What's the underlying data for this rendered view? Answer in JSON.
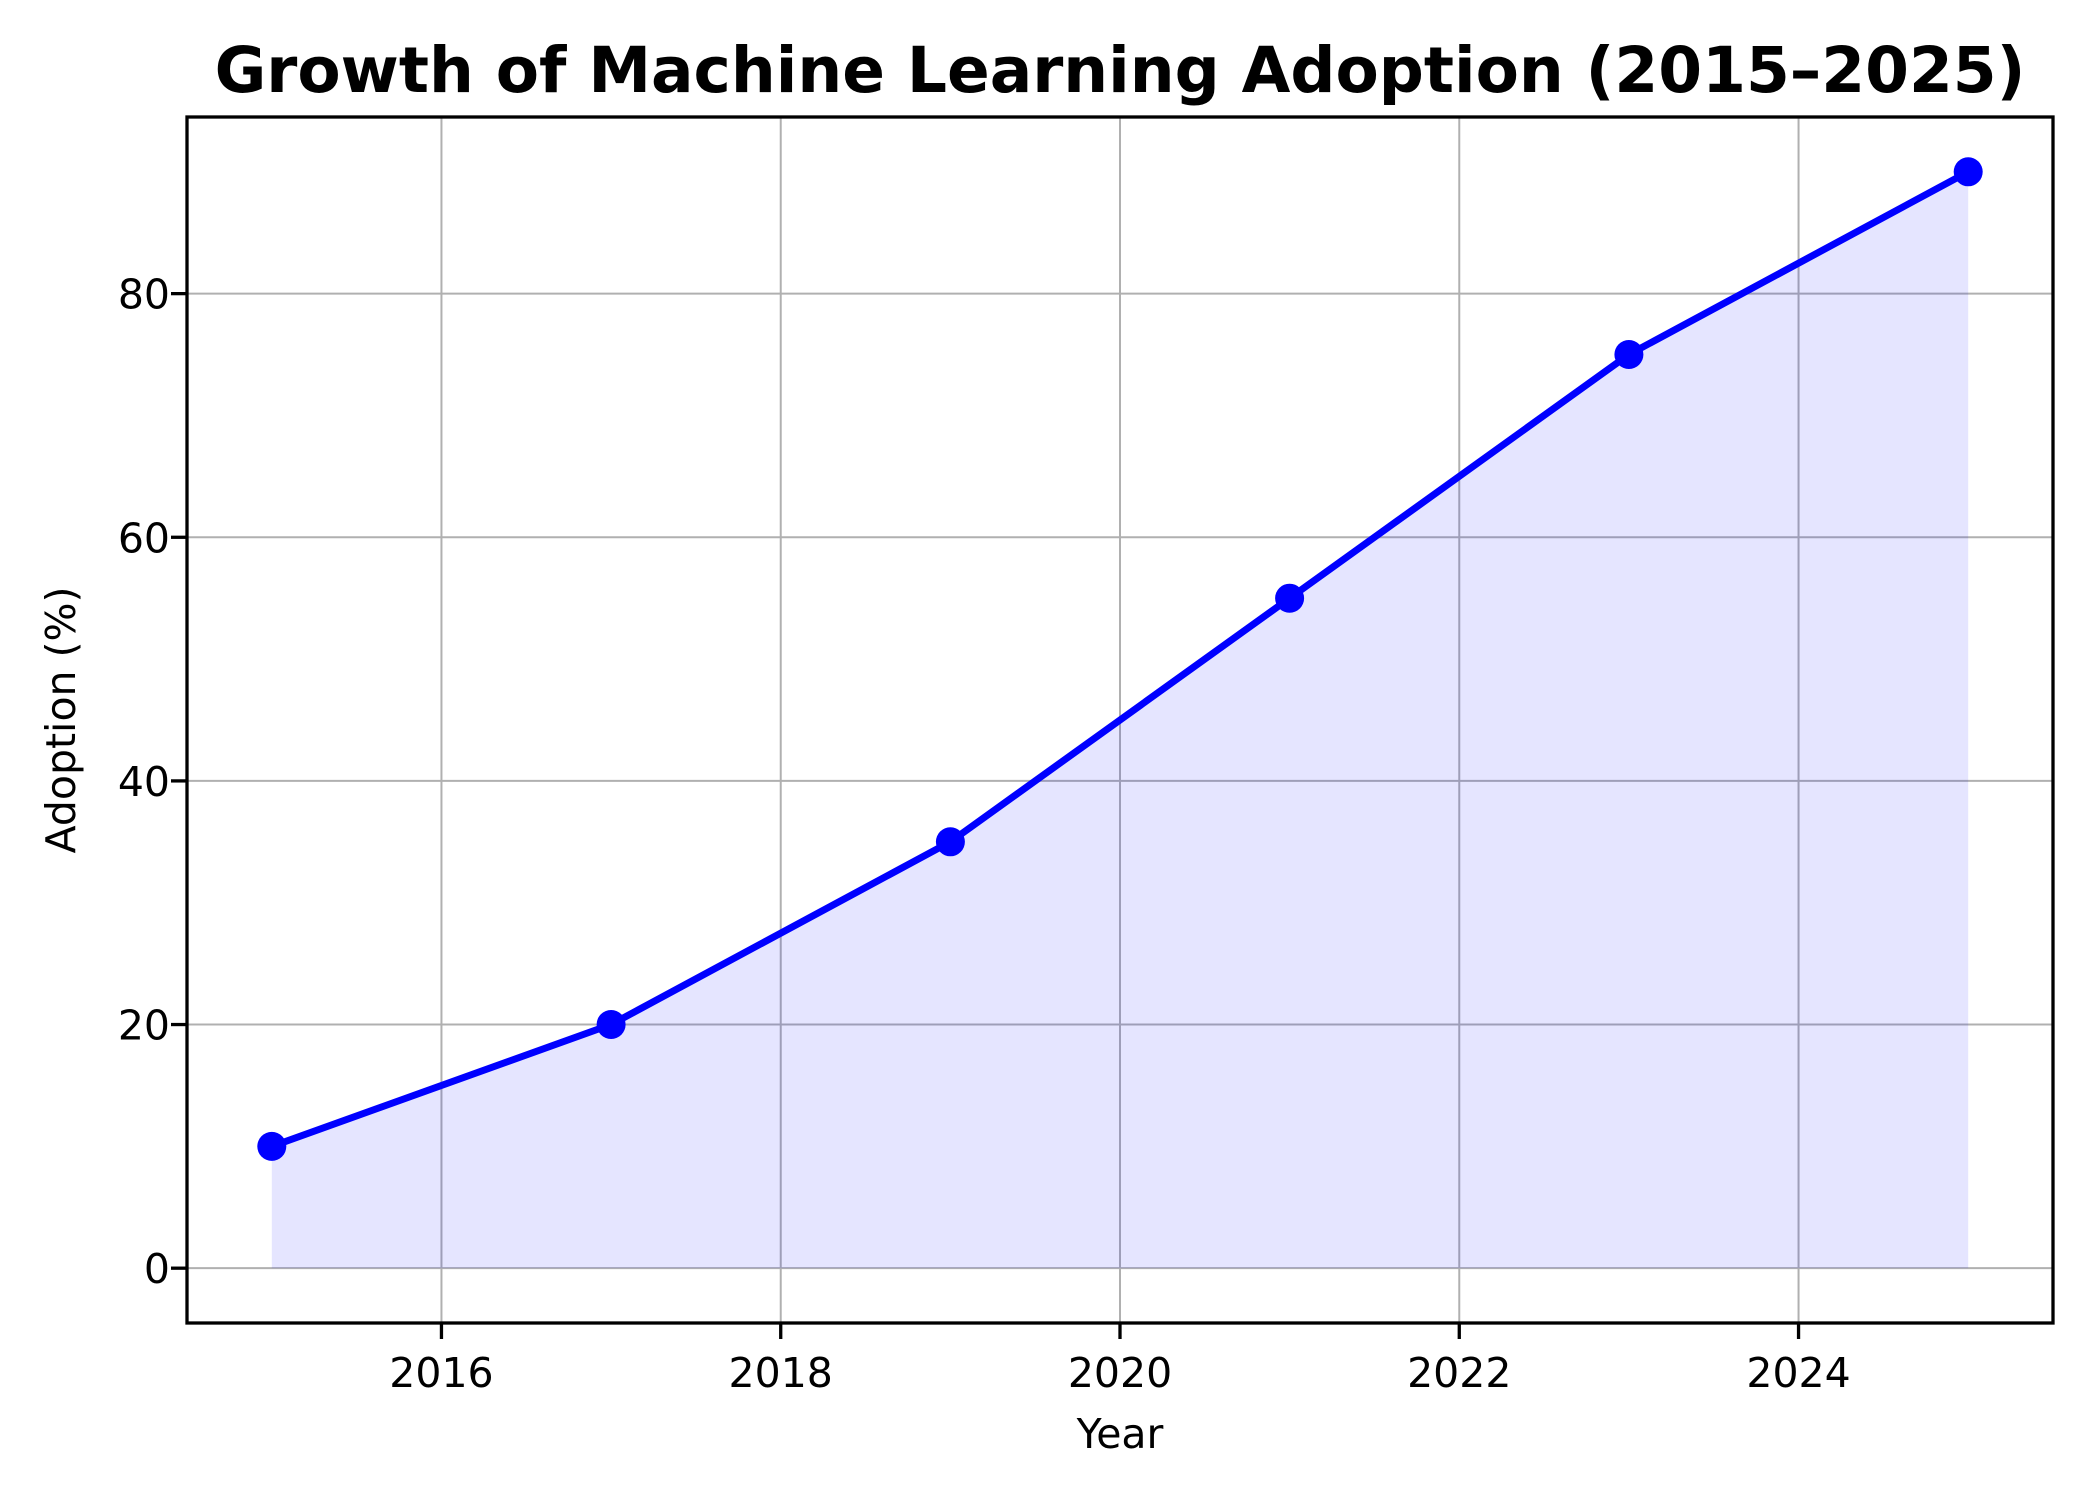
{
  "chart_data": {
    "type": "line",
    "title": "Growth of Machine Learning Adoption (2015–2025)",
    "xlabel": "Year",
    "ylabel": "Adoption (%)",
    "x": [
      2015,
      2017,
      2019,
      2021,
      2023,
      2025
    ],
    "y": [
      10,
      20,
      35,
      55,
      75,
      90
    ],
    "xticks": [
      2016,
      2018,
      2020,
      2022,
      2024
    ],
    "yticks": [
      0,
      20,
      40,
      60,
      80
    ],
    "xlim": [
      2014.5,
      2025.5
    ],
    "ylim": [
      -4.5,
      94.5
    ],
    "grid": true,
    "legend_position": "none",
    "area_fill_baseline": 0,
    "colors": {
      "line": "#0000ff",
      "marker": "#0000ff",
      "area_fill": "rgba(0,0,255,0.10)",
      "grid": "#b0b0b0",
      "frame": "#000000",
      "text": "#000000",
      "background": "#ffffff"
    }
  }
}
